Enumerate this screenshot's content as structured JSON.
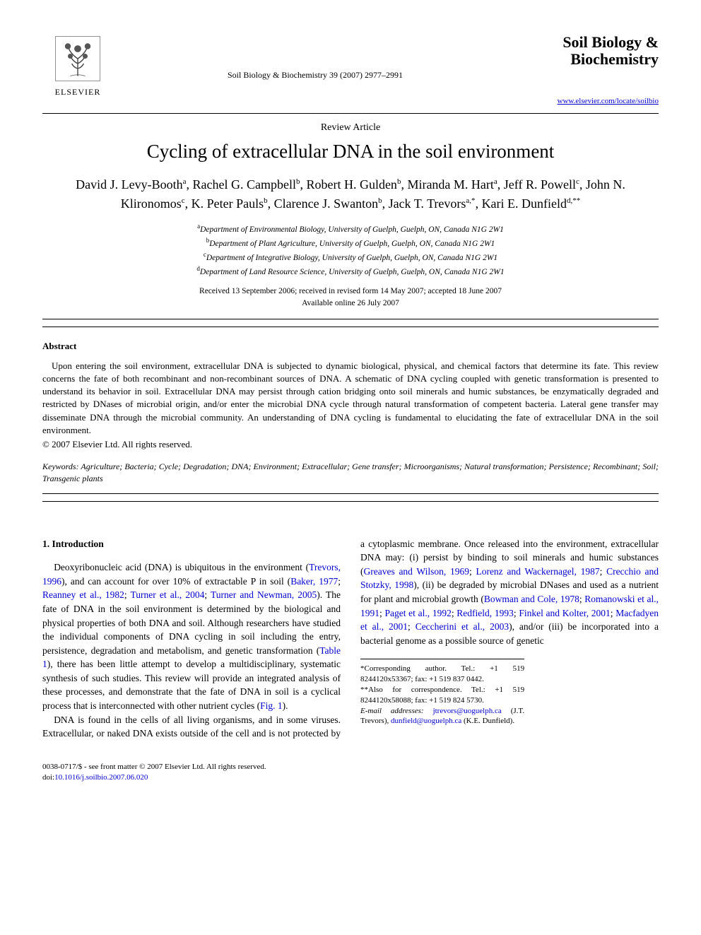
{
  "publisher": {
    "name": "ELSEVIER"
  },
  "journal": {
    "reference": "Soil Biology & Biochemistry 39 (2007) 2977–2991",
    "title_line1": "Soil Biology &",
    "title_line2": "Biochemistry",
    "url": "www.elsevier.com/locate/soilbio"
  },
  "article": {
    "type": "Review Article",
    "title": "Cycling of extracellular DNA in the soil environment",
    "authors_html": "David J. Levy-Booth<sup>a</sup>, Rachel G. Campbell<sup>b</sup>, Robert H. Gulden<sup>b</sup>, Miranda M. Hart<sup>a</sup>, Jeff R. Powell<sup>c</sup>, John N. Klironomos<sup>c</sup>, K. Peter Pauls<sup>b</sup>, Clarence J. Swanton<sup>b</sup>, Jack T. Trevors<sup>a,*</sup>, Kari E. Dunfield<sup>d,**</sup>",
    "affiliations": [
      {
        "sup": "a",
        "text": "Department of Environmental Biology, University of Guelph, Guelph, ON, Canada N1G 2W1"
      },
      {
        "sup": "b",
        "text": "Department of Plant Agriculture, University of Guelph, Guelph, ON, Canada N1G 2W1"
      },
      {
        "sup": "c",
        "text": "Department of Integrative Biology, University of Guelph, Guelph, ON, Canada N1G 2W1"
      },
      {
        "sup": "d",
        "text": "Department of Land Resource Science, University of Guelph, Guelph, ON, Canada N1G 2W1"
      }
    ],
    "dates_line1": "Received 13 September 2006; received in revised form 14 May 2007; accepted 18 June 2007",
    "dates_line2": "Available online 26 July 2007"
  },
  "abstract": {
    "heading": "Abstract",
    "text": "Upon entering the soil environment, extracellular DNA is subjected to dynamic biological, physical, and chemical factors that determine its fate. This review concerns the fate of both recombinant and non-recombinant sources of DNA. A schematic of DNA cycling coupled with genetic transformation is presented to understand its behavior in soil. Extracellular DNA may persist through cation bridging onto soil minerals and humic substances, be enzymatically degraded and restricted by DNases of microbial origin, and/or enter the microbial DNA cycle through natural transformation of competent bacteria. Lateral gene transfer may disseminate DNA through the microbial community. An understanding of DNA cycling is fundamental to elucidating the fate of extracellular DNA in the soil environment.",
    "copyright": "© 2007 Elsevier Ltd. All rights reserved."
  },
  "keywords": {
    "label": "Keywords:",
    "text": " Agriculture; Bacteria; Cycle; Degradation; DNA; Environment; Extracellular; Gene transfer; Microorganisms; Natural transformation; Persistence; Recombinant; Soil; Transgenic plants"
  },
  "body": {
    "section_heading": "1. Introduction",
    "para1_pre": "Deoxyribonucleic acid (DNA) is ubiquitous in the environment (",
    "para1_ref1": "Trevors, 1996",
    "para1_mid1": "), and can account for over 10% of extractable P in soil (",
    "para1_ref2": "Baker, 1977",
    "para1_sep1": "; ",
    "para1_ref3": "Reanney et al., 1982",
    "para1_sep2": "; ",
    "para1_ref4": "Turner et al., 2004",
    "para1_sep3": "; ",
    "para1_ref5": "Turner and Newman, 2005",
    "para1_mid2": "). The fate of DNA in the soil environment is determined by the biological and physical properties of both DNA and soil. Although researchers have studied the individual components of DNA cycling in soil including the entry, persistence, degradation and metabolism, and genetic transformation (",
    "para1_ref6": "Table 1",
    "para1_end": "), there has been little attempt to develop a multidisciplinary, systematic synthesis of such studies. This review will provide an integrated analysis of these processes, and demonstrate that the fate of DNA in soil is a cyclical process that is interconnected with other nutrient cycles (",
    "para1_ref7": "Fig. 1",
    "para1_close": ").",
    "para2_pre": "DNA is found in the cells of all living organisms, and in some viruses. Extracellular, or naked DNA exists outside of the cell and is not protected by a cytoplasmic membrane. Once released into the environment, extracellular DNA may: (i) persist by binding to soil minerals and humic substances (",
    "para2_ref1": "Greaves and Wilson, 1969",
    "para2_sep1": "; ",
    "para2_ref2": "Lorenz and Wackernagel, 1987",
    "para2_sep2": "; ",
    "para2_ref3": "Crecchio and Stotzky, 1998",
    "para2_mid1": "), (ii) be degraded by microbial DNases and used as a nutrient for plant and microbial growth (",
    "para2_ref4": "Bowman and Cole, 1978",
    "para2_sep3": "; ",
    "para2_ref5": "Romanowski et al., 1991",
    "para2_sep4": "; ",
    "para2_ref6": "Paget et al., 1992",
    "para2_sep5": "; ",
    "para2_ref7": "Redfield, 1993",
    "para2_sep6": "; ",
    "para2_ref8": "Finkel and Kolter, 2001",
    "para2_sep7": "; ",
    "para2_ref9": "Macfadyen et al., 2001",
    "para2_sep8": "; ",
    "para2_ref10": "Ceccherini et al., 2003",
    "para2_end": "), and/or (iii) be incorporated into a bacterial genome as a possible source of genetic"
  },
  "footnotes": {
    "corr1": "*Corresponding author. Tel.: +1 519 8244120x53367; fax: +1 519 837 0442.",
    "corr2": "**Also for correspondence. Tel.: +1 519 8244120x58088; fax: +1 519 824 5730.",
    "email_label": "E-mail addresses:",
    "email1": "jtrevors@uoguelph.ca",
    "email1_name": " (J.T. Trevors),",
    "email2": "dunfield@uoguelph.ca",
    "email2_name": " (K.E. Dunfield)."
  },
  "footer": {
    "left": "0038-0717/$ - see front matter © 2007 Elsevier Ltd. All rights reserved.",
    "doi_label": "doi:",
    "doi": "10.1016/j.soilbio.2007.06.020"
  },
  "colors": {
    "link": "#0000cc",
    "text": "#000000",
    "background": "#ffffff"
  }
}
